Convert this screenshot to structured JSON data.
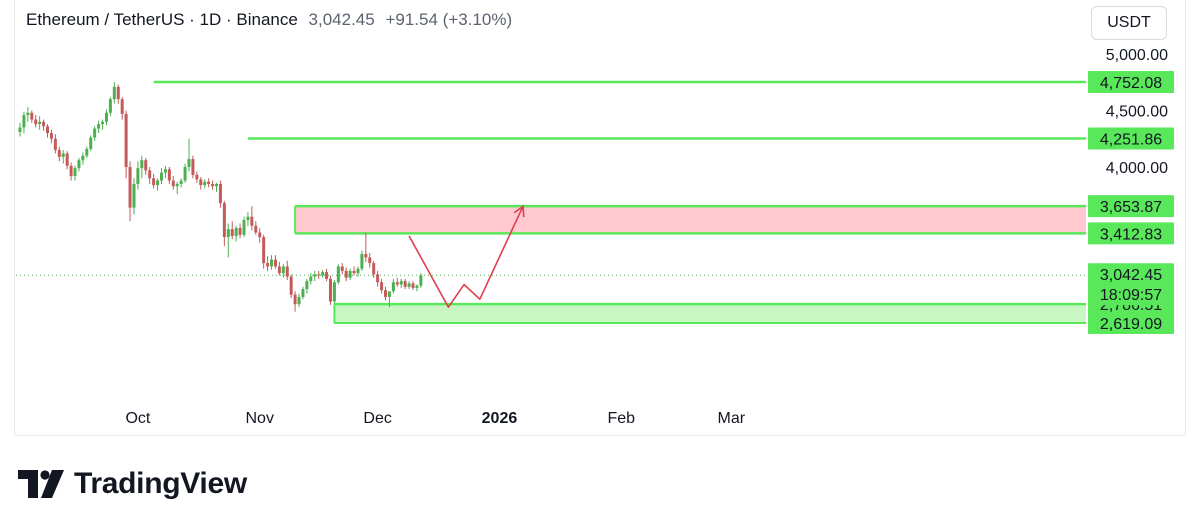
{
  "header": {
    "symbol": "Ethereum / TetherUS · 1D · Binance",
    "price": "3,042.45",
    "change": "+91.54 (+3.10%)"
  },
  "currency": "USDT",
  "colors": {
    "up": "#4caf50",
    "down": "#c45a5a",
    "level_line": "#59e85a",
    "level_tag": "#59e85a",
    "supply_zone": "#ffc9cf",
    "demand_zone": "#c9f7c4",
    "arrow": "#e0404c",
    "current_price_line": "#4caf50"
  },
  "footer": {
    "brand": "TradingView"
  },
  "chart_data": {
    "type": "candlestick",
    "interval": "1D",
    "x_axis_labels": [
      {
        "label": "Oct",
        "date": "2025-10-01"
      },
      {
        "label": "Nov",
        "date": "2025-11-01"
      },
      {
        "label": "Dec",
        "date": "2025-12-01"
      },
      {
        "label": "2026",
        "date": "2026-01-01",
        "bold": true
      },
      {
        "label": "Feb",
        "date": "2026-02-01"
      },
      {
        "label": "Mar",
        "date": "2026-03-01"
      }
    ],
    "y_axis_ticks": [
      "5,000.00",
      "4,500.00",
      "4,000.00"
    ],
    "y_axis_tick_values": [
      5000,
      4500,
      4000
    ],
    "y_range": [
      2450,
      5100
    ],
    "first_candle_date": "2025-09-01",
    "candles": [
      [
        4310,
        4390,
        4270,
        4350
      ],
      [
        4350,
        4490,
        4300,
        4460
      ],
      [
        4460,
        4530,
        4400,
        4480
      ],
      [
        4480,
        4500,
        4390,
        4420
      ],
      [
        4420,
        4460,
        4350,
        4380
      ],
      [
        4380,
        4450,
        4330,
        4400
      ],
      [
        4400,
        4420,
        4320,
        4360
      ],
      [
        4360,
        4380,
        4260,
        4300
      ],
      [
        4300,
        4330,
        4210,
        4250
      ],
      [
        4250,
        4290,
        4120,
        4150
      ],
      [
        4150,
        4180,
        4050,
        4090
      ],
      [
        4090,
        4150,
        4030,
        4120
      ],
      [
        4120,
        4140,
        3980,
        4010
      ],
      [
        4010,
        4040,
        3880,
        3920
      ],
      [
        3920,
        4010,
        3880,
        3990
      ],
      [
        3990,
        4080,
        3960,
        4060
      ],
      [
        4060,
        4130,
        4020,
        4100
      ],
      [
        4100,
        4180,
        4080,
        4160
      ],
      [
        4160,
        4280,
        4140,
        4260
      ],
      [
        4260,
        4360,
        4230,
        4340
      ],
      [
        4340,
        4410,
        4300,
        4380
      ],
      [
        4380,
        4420,
        4330,
        4400
      ],
      [
        4400,
        4510,
        4370,
        4480
      ],
      [
        4480,
        4620,
        4450,
        4600
      ],
      [
        4600,
        4752,
        4560,
        4710
      ],
      [
        4710,
        4730,
        4560,
        4600
      ],
      [
        4600,
        4620,
        4420,
        4470
      ],
      [
        4470,
        4500,
        3900,
        4000
      ],
      [
        4000,
        4050,
        3520,
        3640
      ],
      [
        3640,
        3900,
        3580,
        3850
      ],
      [
        3850,
        4050,
        3800,
        3990
      ],
      [
        3990,
        4100,
        3900,
        4060
      ],
      [
        4060,
        4080,
        3930,
        3970
      ],
      [
        3970,
        4000,
        3850,
        3900
      ],
      [
        3900,
        3940,
        3810,
        3840
      ],
      [
        3840,
        3900,
        3790,
        3880
      ],
      [
        3880,
        3990,
        3850,
        3950
      ],
      [
        3950,
        4010,
        3900,
        3980
      ],
      [
        3980,
        4000,
        3850,
        3880
      ],
      [
        3880,
        3920,
        3800,
        3830
      ],
      [
        3830,
        3870,
        3760,
        3850
      ],
      [
        3850,
        3900,
        3820,
        3880
      ],
      [
        3880,
        4030,
        3860,
        4000
      ],
      [
        4000,
        4251,
        3960,
        4070
      ],
      [
        4070,
        4100,
        3900,
        3930
      ],
      [
        3930,
        3960,
        3860,
        3890
      ],
      [
        3890,
        3910,
        3800,
        3840
      ],
      [
        3840,
        3890,
        3810,
        3870
      ],
      [
        3870,
        3900,
        3820,
        3850
      ],
      [
        3850,
        3880,
        3800,
        3830
      ],
      [
        3830,
        3860,
        3780,
        3850
      ],
      [
        3850,
        3880,
        3640,
        3680
      ],
      [
        3680,
        3700,
        3300,
        3380
      ],
      [
        3380,
        3500,
        3200,
        3450
      ],
      [
        3450,
        3520,
        3360,
        3390
      ],
      [
        3390,
        3480,
        3340,
        3460
      ],
      [
        3460,
        3500,
        3370,
        3400
      ],
      [
        3400,
        3560,
        3380,
        3530
      ],
      [
        3530,
        3600,
        3480,
        3560
      ],
      [
        3560,
        3653,
        3440,
        3480
      ],
      [
        3480,
        3520,
        3400,
        3420
      ],
      [
        3420,
        3460,
        3330,
        3380
      ],
      [
        3380,
        3400,
        3100,
        3150
      ],
      [
        3150,
        3210,
        3080,
        3120
      ],
      [
        3120,
        3220,
        3090,
        3180
      ],
      [
        3180,
        3220,
        3100,
        3120
      ],
      [
        3120,
        3160,
        3040,
        3060
      ],
      [
        3060,
        3140,
        3020,
        3120
      ],
      [
        3120,
        3170,
        3000,
        3030
      ],
      [
        3030,
        3050,
        2840,
        2870
      ],
      [
        2870,
        2900,
        2720,
        2786
      ],
      [
        2786,
        2880,
        2760,
        2850
      ],
      [
        2850,
        2940,
        2830,
        2920
      ],
      [
        2920,
        3010,
        2880,
        2990
      ],
      [
        2990,
        3060,
        2960,
        3030
      ],
      [
        3030,
        3080,
        2990,
        3050
      ],
      [
        3050,
        3080,
        3010,
        3040
      ],
      [
        3040,
        3090,
        3020,
        3070
      ],
      [
        3070,
        3100,
        2990,
        3010
      ],
      [
        3010,
        3040,
        2780,
        2810
      ],
      [
        2810,
        3000,
        2790,
        2980
      ],
      [
        2980,
        3140,
        2960,
        3120
      ],
      [
        3120,
        3150,
        3050,
        3080
      ],
      [
        3080,
        3110,
        2990,
        3020
      ],
      [
        3020,
        3100,
        3000,
        3080
      ],
      [
        3080,
        3120,
        3040,
        3060
      ],
      [
        3060,
        3120,
        3030,
        3100
      ],
      [
        3100,
        3260,
        3080,
        3230
      ],
      [
        3230,
        3420,
        3160,
        3200
      ],
      [
        3200,
        3240,
        3110,
        3150
      ],
      [
        3150,
        3170,
        3020,
        3050
      ],
      [
        3050,
        3080,
        2940,
        2980
      ],
      [
        2980,
        3010,
        2880,
        2910
      ],
      [
        2910,
        2940,
        2820,
        2850
      ],
      [
        2850,
        2880,
        2760,
        2900
      ],
      [
        2900,
        3010,
        2880,
        2980
      ],
      [
        2980,
        3020,
        2940,
        2960
      ],
      [
        2960,
        3010,
        2930,
        2990
      ],
      [
        2990,
        3010,
        2920,
        2940
      ],
      [
        2940,
        2990,
        2920,
        2970
      ],
      [
        2970,
        2990,
        2910,
        2930
      ],
      [
        2930,
        2960,
        2900,
        2950
      ],
      [
        2950,
        3060,
        2930,
        3042
      ]
    ],
    "levels": [
      {
        "price": 4752.08,
        "label": "4,752.08",
        "start_date": "2025-10-05"
      },
      {
        "price": 4251.86,
        "label": "4,251.86",
        "start_date": "2025-10-29"
      },
      {
        "price": 3653.87,
        "label": "3,653.87",
        "start_date": "2025-11-10"
      },
      {
        "price": 3412.83,
        "label": "3,412.83",
        "start_date": "2025-11-10"
      },
      {
        "price": 2786.51,
        "label": "2,786.51",
        "start_date": "2025-11-20"
      },
      {
        "price": 2619.09,
        "label": "2,619.09",
        "start_date": null
      }
    ],
    "zones": [
      {
        "type": "supply",
        "from": 3412.83,
        "to": 3653.87,
        "start_date": "2025-11-10"
      },
      {
        "type": "demand",
        "from": 2619.09,
        "to": 2786.51,
        "start_date": "2025-11-20"
      }
    ],
    "current_price": {
      "label": "3,042.45",
      "countdown": "18:09:57",
      "price": 3042.45
    },
    "projection_path": [
      {
        "date": "2025-12-09",
        "price": 3390
      },
      {
        "date": "2025-12-19",
        "price": 2760
      },
      {
        "date": "2025-12-23",
        "price": 2960
      },
      {
        "date": "2025-12-27",
        "price": 2830
      },
      {
        "date": "2026-01-07",
        "price": 3653
      }
    ]
  }
}
